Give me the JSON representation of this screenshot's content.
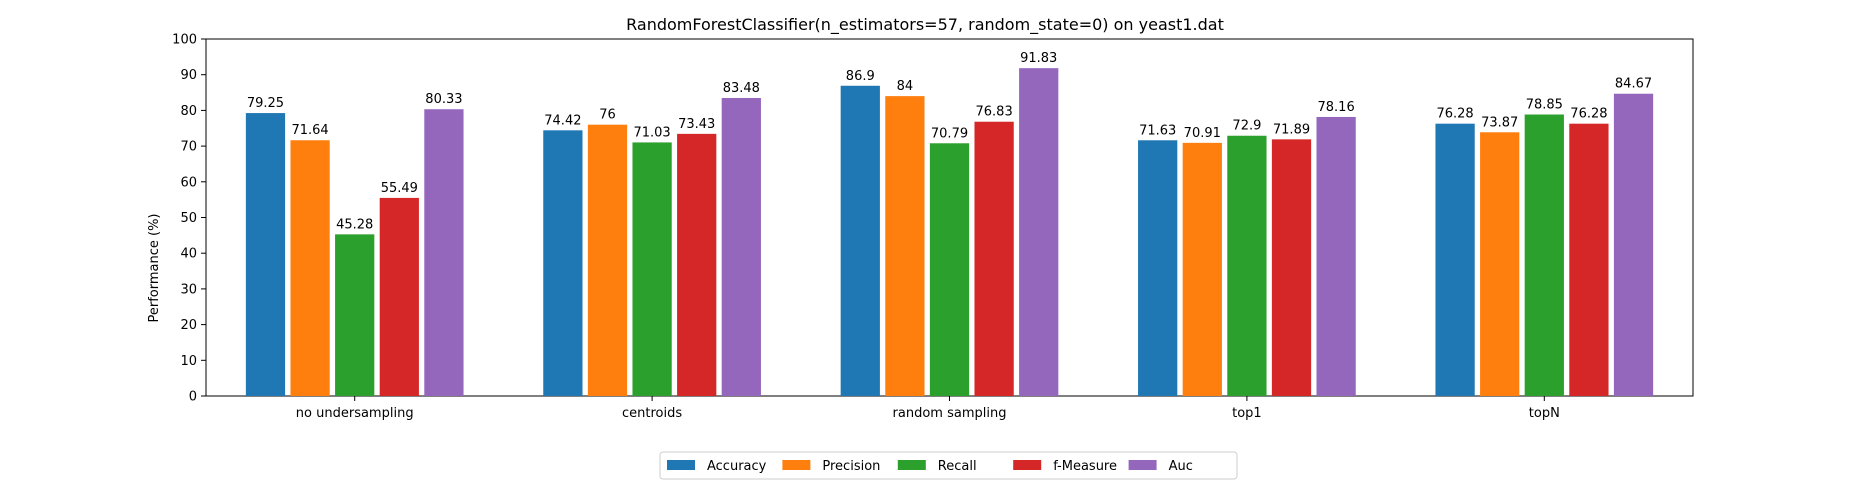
{
  "chart_data": {
    "type": "bar",
    "title": "RandomForestClassifier(n_estimators=57, random_state=0) on yeast1.dat",
    "xlabel": "",
    "ylabel": "Performance (%)",
    "ylim": [
      0,
      100
    ],
    "yticks": [
      0,
      10,
      20,
      30,
      40,
      50,
      60,
      70,
      80,
      90,
      100
    ],
    "grid": false,
    "legend_position": "bottom-center",
    "categories": [
      "no undersampling",
      "centroids",
      "random sampling",
      "top1",
      "topN"
    ],
    "series": [
      {
        "name": "Accuracy",
        "color": "#1f77b4",
        "values": [
          79.25,
          74.42,
          86.9,
          71.63,
          76.28
        ],
        "labels": [
          "79.25",
          "74.42",
          "86.9",
          "71.63",
          "76.28"
        ]
      },
      {
        "name": "Precision",
        "color": "#ff7f0e",
        "values": [
          71.64,
          76,
          84,
          70.91,
          73.87
        ],
        "labels": [
          "71.64",
          "76",
          "84",
          "70.91",
          "73.87"
        ]
      },
      {
        "name": "Recall",
        "color": "#2ca02c",
        "values": [
          45.28,
          71.03,
          70.79,
          72.9,
          78.85
        ],
        "labels": [
          "45.28",
          "71.03",
          "70.79",
          "72.9",
          "78.85"
        ]
      },
      {
        "name": "f-Measure",
        "color": "#d62728",
        "values": [
          55.49,
          73.43,
          76.83,
          71.89,
          76.28
        ],
        "labels": [
          "55.49",
          "73.43",
          "76.83",
          "71.89",
          "76.28"
        ]
      },
      {
        "name": "Auc",
        "color": "#9467bd",
        "values": [
          80.33,
          83.48,
          91.83,
          78.16,
          84.67
        ],
        "labels": [
          "80.33",
          "83.48",
          "91.83",
          "78.16",
          "84.67"
        ]
      }
    ]
  }
}
